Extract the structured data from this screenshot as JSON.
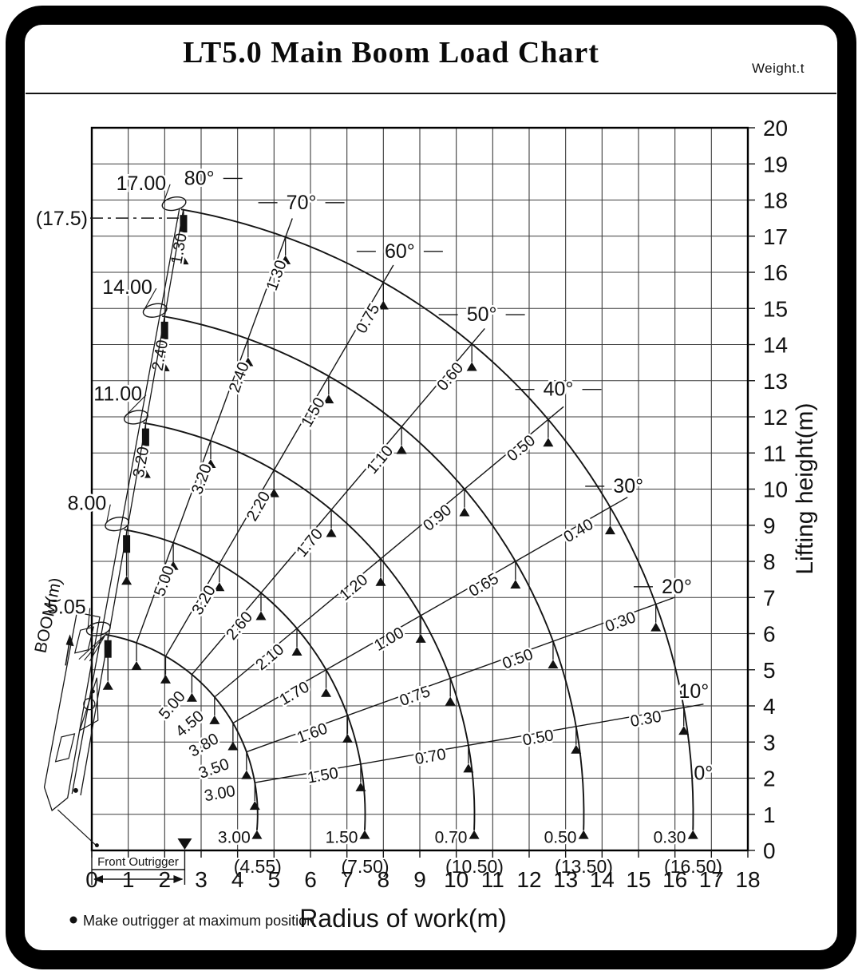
{
  "header": {
    "title": "LT5.0 Main Boom Load Chart",
    "weight_unit": "Weight.t"
  },
  "axes": {
    "x_label": "Radius of work(m)",
    "y_label": "Lifting height(m)",
    "x_ticks": [
      0,
      1,
      2,
      3,
      4,
      5,
      6,
      7,
      8,
      9,
      10,
      11,
      12,
      13,
      14,
      15,
      16,
      17,
      18
    ],
    "y_ticks": [
      0,
      1,
      2,
      3,
      4,
      5,
      6,
      7,
      8,
      9,
      10,
      11,
      12,
      13,
      14,
      15,
      16,
      17,
      18,
      19,
      20
    ]
  },
  "labels": {
    "max_height": "(17.5)",
    "boom_axis": "BOOM(m)",
    "front_outrigger": "Front Outrigger",
    "note": "Make outrigger at maximum position"
  },
  "chart_data": {
    "type": "line",
    "title": "LT5.0 Main Boom Load Chart",
    "xlabel": "Radius of work(m)",
    "ylabel": "Lifting height(m)",
    "xlim": [
      0,
      18
    ],
    "ylim": [
      0,
      20
    ],
    "grid": true,
    "weight_unit_note": "Weight.t",
    "max_lifting_height_label": "(17.5)",
    "pivot": {
      "x": -0.5,
      "y": 1.0
    },
    "boom_angles_deg": [
      0,
      10,
      20,
      30,
      40,
      50,
      60,
      70,
      80
    ],
    "angle_labels": {
      "0": "0°",
      "10": "10°",
      "20": "20°",
      "30": "30°",
      "40": "40°",
      "50": "50°",
      "60": "60°",
      "70": "70°",
      "80": "80°"
    },
    "booms": [
      {
        "label": "5.05",
        "length_m": 5.05,
        "radius_at_0_m": 4.55,
        "radius_at_0_label": "(4.55)",
        "loads_t": {
          "0": "3.00",
          "10": "3.00",
          "20": "3.50",
          "30": "3.80",
          "40": "4.50",
          "50": "5.00"
        }
      },
      {
        "label": "8.00",
        "length_m": 8.0,
        "radius_at_0_m": 7.5,
        "radius_at_0_label": "(7.50)",
        "loads_t": {
          "0": "1.50",
          "10": "1.50",
          "20": "1.60",
          "30": "1.70",
          "40": "2.10",
          "50": "2.60",
          "60": "3.20",
          "70": "5.00"
        }
      },
      {
        "label": "11.00",
        "length_m": 11.0,
        "radius_at_0_m": 10.5,
        "radius_at_0_label": "(10.50)",
        "loads_t": {
          "0": "0.70",
          "10": "0.70",
          "20": "0.75",
          "30": "1.00",
          "40": "1.20",
          "50": "1.70",
          "60": "2.20",
          "70": "3.20",
          "80": "3.20"
        }
      },
      {
        "label": "14.00",
        "length_m": 14.0,
        "radius_at_0_m": 13.5,
        "radius_at_0_label": "(13.50)",
        "loads_t": {
          "0": "0.50",
          "10": "0.50",
          "20": "0.50",
          "30": "0.65",
          "40": "0.90",
          "50": "1.10",
          "60": "1.50",
          "70": "2.40",
          "80": "2.40"
        }
      },
      {
        "label": "17.00",
        "length_m": 17.0,
        "radius_at_0_m": 16.5,
        "radius_at_0_label": "(16.50)",
        "loads_t": {
          "0": "0.30",
          "10": "0.30",
          "20": "0.30",
          "30": "0.40",
          "40": "0.50",
          "50": "0.60",
          "60": "0.75",
          "70": "1.30",
          "80": "1.30"
        }
      }
    ],
    "note": "Make outrigger at maximum position",
    "front_outrigger": "Front Outrigger"
  }
}
